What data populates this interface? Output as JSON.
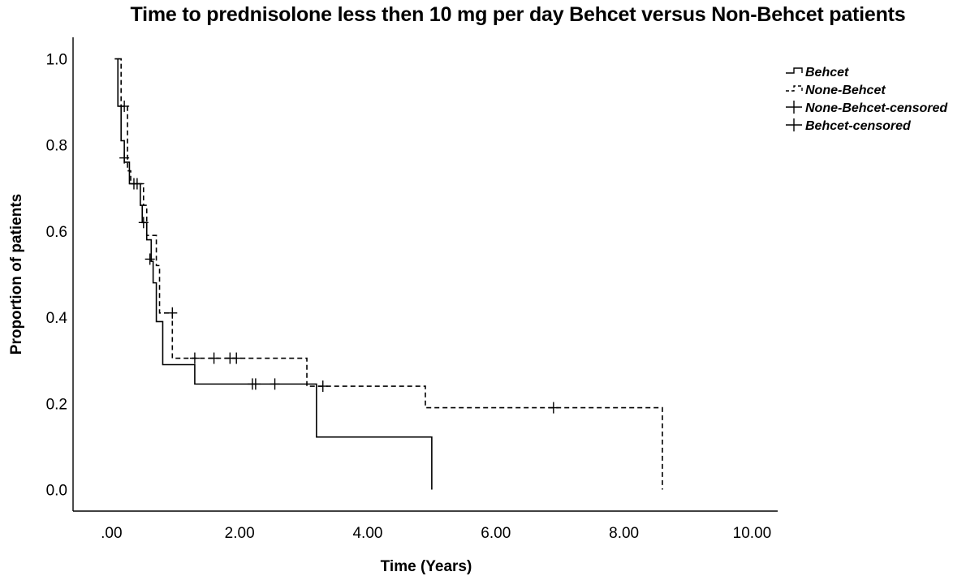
{
  "chart_data": {
    "type": "line",
    "title": "Time to prednisolone less then 10 mg per day Behcet versus Non-Behcet patients",
    "xlabel": "Time (Years)",
    "ylabel": "Proportion of patients",
    "xlim": [
      -0.6,
      10.4
    ],
    "ylim": [
      -0.05,
      1.05
    ],
    "xticks": [
      0,
      2,
      4,
      6,
      8,
      10
    ],
    "xtick_labels": [
      ".00",
      "2.00",
      "4.00",
      "6.00",
      "8.00",
      "10.00"
    ],
    "yticks": [
      0,
      0.2,
      0.4,
      0.6,
      0.8,
      1.0
    ],
    "ytick_labels": [
      "0.0",
      "0.2",
      "0.4",
      "0.6",
      "0.8",
      "1.0"
    ],
    "grid": false,
    "legend_position": "top-right",
    "legend": [
      "Behcet",
      "None-Behcet",
      "None-Behcet-censored",
      "Behcet-censored"
    ],
    "series": [
      {
        "name": "Behcet",
        "style": "solid",
        "color": "#000000",
        "steps": [
          [
            0.05,
            1.0
          ],
          [
            0.1,
            0.89
          ],
          [
            0.15,
            0.81
          ],
          [
            0.2,
            0.76
          ],
          [
            0.28,
            0.71
          ],
          [
            0.45,
            0.66
          ],
          [
            0.48,
            0.62
          ],
          [
            0.55,
            0.58
          ],
          [
            0.62,
            0.53
          ],
          [
            0.65,
            0.48
          ],
          [
            0.7,
            0.39
          ],
          [
            0.8,
            0.29
          ],
          [
            1.3,
            0.245
          ],
          [
            3.2,
            0.122
          ],
          [
            5.0,
            0.0
          ]
        ],
        "end_x": 5.0,
        "censored": [
          [
            0.2,
            0.77
          ],
          [
            0.35,
            0.71
          ],
          [
            0.5,
            0.62
          ],
          [
            0.6,
            0.535
          ],
          [
            2.2,
            0.245
          ],
          [
            2.25,
            0.245
          ],
          [
            2.55,
            0.245
          ]
        ]
      },
      {
        "name": "None-Behcet",
        "style": "dashed",
        "color": "#000000",
        "steps": [
          [
            0.1,
            1.0
          ],
          [
            0.15,
            0.89
          ],
          [
            0.25,
            0.74
          ],
          [
            0.3,
            0.71
          ],
          [
            0.5,
            0.66
          ],
          [
            0.55,
            0.59
          ],
          [
            0.7,
            0.52
          ],
          [
            0.75,
            0.41
          ],
          [
            0.95,
            0.305
          ],
          [
            3.05,
            0.24
          ],
          [
            4.9,
            0.19
          ],
          [
            8.6,
            0.0
          ]
        ],
        "end_x": 8.6,
        "censored": [
          [
            0.2,
            0.89
          ],
          [
            0.4,
            0.71
          ],
          [
            0.95,
            0.41
          ],
          [
            1.3,
            0.305
          ],
          [
            1.6,
            0.305
          ],
          [
            1.85,
            0.305
          ],
          [
            1.95,
            0.305
          ],
          [
            3.3,
            0.24
          ],
          [
            6.9,
            0.19
          ]
        ]
      }
    ]
  }
}
